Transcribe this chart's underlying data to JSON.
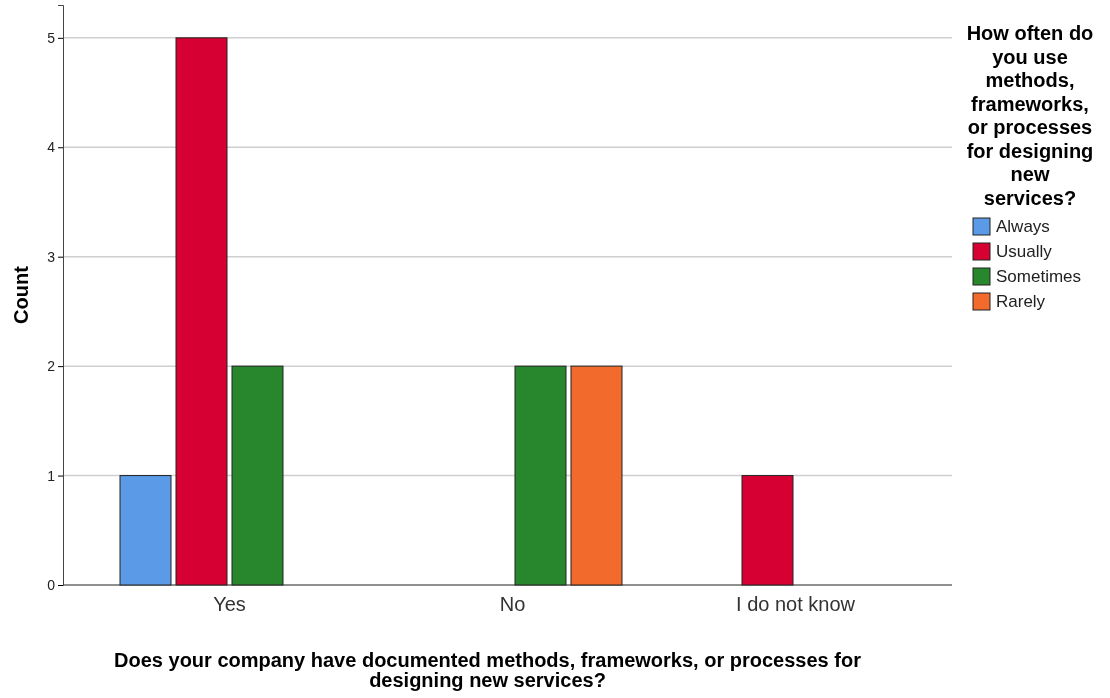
{
  "chart_data": {
    "type": "bar",
    "xlabel": "Does your company have documented methods, frameworks, or processes for designing new services?",
    "ylabel": "Count",
    "legend_title": "How often do you use methods, frameworks, or processes for designing new services?",
    "categories": [
      "Yes",
      "No",
      "I do not know"
    ],
    "series": [
      {
        "name": "Always",
        "color": "#5a9ae6",
        "values": [
          1,
          null,
          null
        ]
      },
      {
        "name": "Usually",
        "color": "#d70032",
        "values": [
          5,
          null,
          1
        ]
      },
      {
        "name": "Sometimes",
        "color": "#28862c",
        "values": [
          2,
          2,
          null
        ]
      },
      {
        "name": "Rarely",
        "color": "#f26a2c",
        "values": [
          null,
          2,
          null
        ]
      }
    ],
    "ylim": [
      0,
      5.3
    ],
    "yticks": [
      0,
      1,
      2,
      3,
      4,
      5
    ],
    "grid": "y",
    "legend": "right"
  }
}
